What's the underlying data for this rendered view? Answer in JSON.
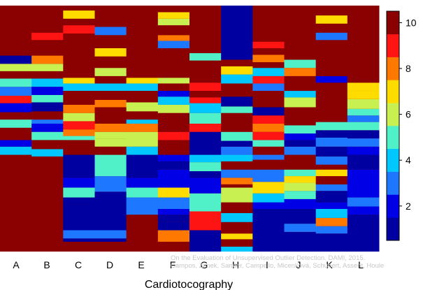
{
  "chart_data": {
    "type": "heatmap",
    "xlabel": "Cardiotocography",
    "categories": [
      "A",
      "B",
      "C",
      "D",
      "E",
      "F",
      "G",
      "H",
      "I",
      "J",
      "K",
      "L"
    ],
    "colorbar": {
      "min": 0.5,
      "max": 10.5,
      "ticks": [
        2,
        4,
        6,
        8,
        10
      ]
    },
    "ylim": [
      0,
      30
    ],
    "columns": {
      "A": [
        [
          0,
          10
        ],
        [
          10,
          11
        ],
        [
          11,
          10
        ],
        [
          11.8,
          4
        ],
        [
          12.8,
          2
        ],
        [
          13.6,
          10
        ],
        [
          15.1,
          5
        ],
        [
          16.1,
          10
        ],
        [
          17,
          2
        ],
        [
          18.1,
          9
        ],
        [
          19,
          3
        ],
        [
          20.1,
          5
        ],
        [
          21.1,
          10
        ],
        [
          22,
          6
        ],
        [
          22.9,
          1
        ],
        [
          23.9,
          10
        ]
      ],
      "B": [
        [
          0,
          10
        ],
        [
          10,
          11
        ],
        [
          11,
          10
        ],
        [
          11.6,
          4
        ],
        [
          12.5,
          10
        ],
        [
          13.6,
          5
        ],
        [
          14.6,
          2
        ],
        [
          15.6,
          3
        ],
        [
          16.1,
          10
        ],
        [
          17.1,
          1
        ],
        [
          18.2,
          5
        ],
        [
          19.1,
          2
        ],
        [
          20.1,
          4
        ],
        [
          21.1,
          10
        ],
        [
          22,
          6
        ],
        [
          22.9,
          8
        ],
        [
          23.9,
          10
        ],
        [
          25.8,
          9
        ],
        [
          26.7,
          10
        ]
      ],
      "C": [
        [
          0,
          10
        ],
        [
          1.2,
          1
        ],
        [
          1.6,
          3
        ],
        [
          2.6,
          1
        ],
        [
          5.8,
          1
        ],
        [
          6.6,
          5
        ],
        [
          7.8,
          2
        ],
        [
          9,
          1
        ],
        [
          11.8,
          10
        ],
        [
          13.6,
          5
        ],
        [
          14.1,
          8
        ],
        [
          14.9,
          9
        ],
        [
          15.9,
          6
        ],
        [
          16.9,
          8
        ],
        [
          17.9,
          10
        ],
        [
          19.6,
          4
        ],
        [
          20.5,
          7
        ],
        [
          21.2,
          10
        ],
        [
          22,
          10
        ],
        [
          26.6,
          9
        ],
        [
          27.6,
          10
        ],
        [
          28.4,
          7
        ],
        [
          29.4,
          10
        ]
      ],
      "D": [
        [
          0,
          10
        ],
        [
          1.2,
          1
        ],
        [
          1.6,
          3
        ],
        [
          2.6,
          1
        ],
        [
          7.3,
          3
        ],
        [
          9.2,
          5
        ],
        [
          11.8,
          10
        ],
        [
          12.8,
          6
        ],
        [
          13.8,
          6
        ],
        [
          14.6,
          8
        ],
        [
          15.6,
          10
        ],
        [
          17.6,
          8
        ],
        [
          18.5,
          10
        ],
        [
          19.6,
          4
        ],
        [
          20.5,
          10
        ],
        [
          21.4,
          6
        ],
        [
          22.4,
          10
        ],
        [
          23.8,
          7
        ],
        [
          24.8,
          10
        ],
        [
          26.4,
          3
        ],
        [
          27.4,
          10
        ]
      ],
      "E": [
        [
          0,
          10
        ],
        [
          4.5,
          3
        ],
        [
          6.6,
          5
        ],
        [
          7.8,
          2
        ],
        [
          9,
          1
        ],
        [
          11.8,
          4
        ],
        [
          12.8,
          6
        ],
        [
          14.6,
          8
        ],
        [
          15.6,
          4
        ],
        [
          16.1,
          10
        ],
        [
          17.1,
          6
        ],
        [
          18.2,
          10
        ],
        [
          19.6,
          4
        ],
        [
          20.5,
          7
        ],
        [
          21.2,
          10
        ]
      ],
      "F": [
        [
          0,
          10
        ],
        [
          1.2,
          8
        ],
        [
          2.6,
          1
        ],
        [
          3.6,
          1
        ],
        [
          4.5,
          2
        ],
        [
          5.2,
          3
        ],
        [
          6.6,
          7
        ],
        [
          7.8,
          2
        ],
        [
          10,
          1
        ],
        [
          11,
          2
        ],
        [
          11.8,
          10
        ],
        [
          13.6,
          9
        ],
        [
          14.6,
          10
        ],
        [
          16.9,
          6
        ],
        [
          17.9,
          4
        ],
        [
          18.9,
          2
        ],
        [
          19.6,
          10
        ],
        [
          20.5,
          6
        ],
        [
          21.2,
          10
        ],
        [
          24.8,
          3
        ],
        [
          25.7,
          8
        ],
        [
          26.4,
          10
        ],
        [
          27.6,
          6
        ],
        [
          28.4,
          7
        ],
        [
          29.2,
          10
        ]
      ],
      "G": [
        [
          0,
          1
        ],
        [
          2.6,
          9
        ],
        [
          4.9,
          5
        ],
        [
          7.1,
          2
        ],
        [
          9,
          1
        ],
        [
          9.8,
          5
        ],
        [
          10.9,
          4
        ],
        [
          11.8,
          1
        ],
        [
          14.6,
          9
        ],
        [
          15.6,
          5
        ],
        [
          16.9,
          4
        ],
        [
          18.1,
          9
        ],
        [
          18.8,
          10
        ],
        [
          19.6,
          9
        ],
        [
          20.6,
          10
        ],
        [
          23.3,
          5
        ],
        [
          24.2,
          10
        ]
      ],
      "H": [
        [
          0,
          4
        ],
        [
          0.6,
          10
        ],
        [
          1.5,
          7
        ],
        [
          2.2,
          10
        ],
        [
          3.6,
          4
        ],
        [
          4.7,
          10
        ],
        [
          6,
          6
        ],
        [
          7.8,
          10
        ],
        [
          8.2,
          8
        ],
        [
          9,
          3
        ],
        [
          10,
          10
        ],
        [
          11,
          4
        ],
        [
          11.8,
          3
        ],
        [
          12.8,
          1
        ],
        [
          13.5,
          5
        ],
        [
          14.6,
          10
        ],
        [
          16.9,
          5
        ],
        [
          17.7,
          1
        ],
        [
          18.9,
          10
        ],
        [
          20.5,
          4
        ],
        [
          21.6,
          7
        ],
        [
          22.6,
          10
        ],
        [
          23.4,
          1
        ]
      ],
      "I": [
        [
          0,
          1
        ],
        [
          5.2,
          2
        ],
        [
          6,
          4
        ],
        [
          7.1,
          7
        ],
        [
          8.5,
          3
        ],
        [
          10,
          10
        ],
        [
          11.2,
          3
        ],
        [
          11.8,
          10
        ],
        [
          12.8,
          5
        ],
        [
          13.6,
          9
        ],
        [
          14.6,
          8
        ],
        [
          15.6,
          9
        ],
        [
          16.6,
          1
        ],
        [
          17.6,
          10
        ],
        [
          19.6,
          3
        ],
        [
          20.5,
          9
        ],
        [
          21.4,
          4
        ],
        [
          22.4,
          10
        ],
        [
          23.1,
          8
        ],
        [
          24,
          10
        ],
        [
          24.8,
          9
        ],
        [
          25.6,
          10
        ]
      ],
      "J": [
        [
          0,
          1
        ],
        [
          2.4,
          3
        ],
        [
          3.4,
          1
        ],
        [
          5.2,
          2
        ],
        [
          6.4,
          5
        ],
        [
          7.4,
          6
        ],
        [
          8.4,
          7
        ],
        [
          9.2,
          5
        ],
        [
          10,
          10
        ],
        [
          11.8,
          3
        ],
        [
          12.8,
          1
        ],
        [
          13.6,
          2
        ],
        [
          14.4,
          5
        ],
        [
          15.4,
          10
        ],
        [
          17.6,
          6
        ],
        [
          18.8,
          4
        ],
        [
          19.6,
          10
        ],
        [
          21.4,
          8
        ],
        [
          22.4,
          5
        ],
        [
          23.4,
          10
        ]
      ],
      "K": [
        [
          0,
          1
        ],
        [
          2.2,
          3
        ],
        [
          3.1,
          8
        ],
        [
          4.1,
          4
        ],
        [
          5.2,
          2
        ],
        [
          6,
          1
        ],
        [
          7.4,
          3
        ],
        [
          8.2,
          10
        ],
        [
          9.2,
          7
        ],
        [
          10,
          10
        ],
        [
          10.6,
          3
        ],
        [
          11.6,
          1
        ],
        [
          12.8,
          3
        ],
        [
          13.9,
          1
        ],
        [
          14.8,
          5
        ],
        [
          15.8,
          10
        ],
        [
          20.6,
          2
        ],
        [
          21.4,
          10
        ],
        [
          25.8,
          3
        ],
        [
          26.7,
          10
        ],
        [
          27.8,
          7
        ],
        [
          28.8,
          10
        ]
      ],
      "L": [
        [
          0,
          1
        ],
        [
          4.5,
          2
        ],
        [
          5.5,
          3
        ],
        [
          6.6,
          2
        ],
        [
          10,
          1
        ],
        [
          11.8,
          2
        ],
        [
          12.8,
          3
        ],
        [
          13.8,
          1
        ],
        [
          14.8,
          5
        ],
        [
          15.8,
          3
        ],
        [
          16.6,
          5
        ],
        [
          17.4,
          6
        ],
        [
          18.6,
          7
        ],
        [
          19.6,
          7
        ],
        [
          20.6,
          10
        ]
      ]
    }
  },
  "watermark": {
    "line1": "On the Evaluation of Unsupervised Outlier Detection. DAMI, 2015.",
    "line2": "Campos, Zimek, Sander, Campello, Micenková, Schubert, Assent, Houle"
  }
}
